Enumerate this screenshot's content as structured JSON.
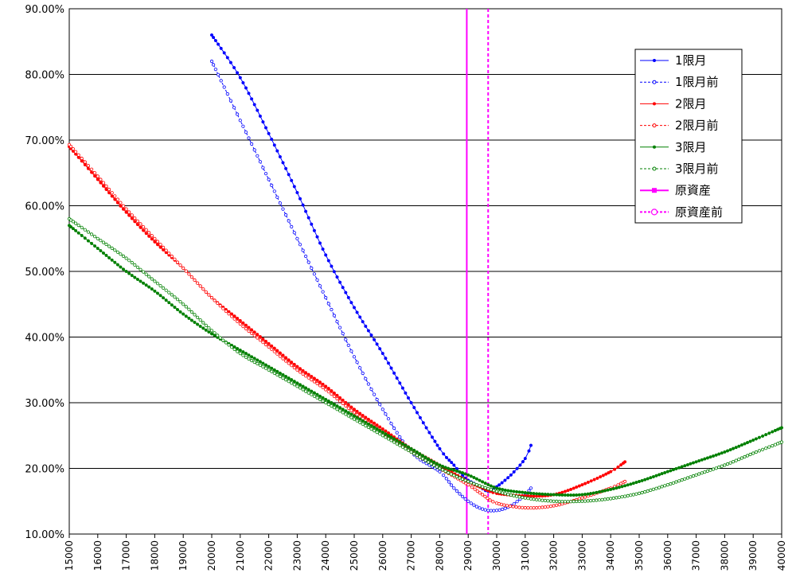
{
  "chart_data": {
    "type": "line",
    "title": "",
    "xlabel": "",
    "ylabel": "",
    "xlim": [
      15000,
      40000
    ],
    "ylim": [
      10,
      90
    ],
    "x_ticks": [
      "15000",
      "16000",
      "17000",
      "18000",
      "19000",
      "20000",
      "21000",
      "22000",
      "23000",
      "24000",
      "25000",
      "26000",
      "27000",
      "28000",
      "29000",
      "30000",
      "31000",
      "32000",
      "33000",
      "34000",
      "35000",
      "36000",
      "37000",
      "38000",
      "39000",
      "40000"
    ],
    "y_ticks": [
      "10.00%",
      "20.00%",
      "30.00%",
      "40.00%",
      "50.00%",
      "60.00%",
      "70.00%",
      "80.00%",
      "90.00%"
    ],
    "grid": "horizontal",
    "legend_position": "top-right",
    "legend": [
      "1限月",
      "1限月前",
      "2限月",
      "2限月前",
      "3限月",
      "3限月前",
      "原資産",
      "原資産前"
    ],
    "series": [
      {
        "name": "1限月",
        "color": "#0000ff",
        "style": "solid-filled",
        "points": [
          [
            20000,
            86.0
          ],
          [
            21000,
            79.5
          ],
          [
            22000,
            71.0
          ],
          [
            23000,
            62.0
          ],
          [
            24000,
            52.5
          ],
          [
            25000,
            44.5
          ],
          [
            26000,
            37.5
          ],
          [
            27000,
            30.0
          ],
          [
            28000,
            23.0
          ],
          [
            28500,
            20.5
          ],
          [
            28900,
            18.5
          ],
          [
            29300,
            17.5
          ],
          [
            29700,
            16.5
          ],
          [
            30000,
            17.2
          ],
          [
            30500,
            19.0
          ],
          [
            31000,
            21.5
          ],
          [
            31200,
            23.5
          ]
        ]
      },
      {
        "name": "1限月前",
        "color": "#0000ff",
        "style": "dashed-hollow",
        "points": [
          [
            20000,
            82.0
          ],
          [
            21000,
            73.0
          ],
          [
            22000,
            64.0
          ],
          [
            23000,
            55.0
          ],
          [
            24000,
            46.0
          ],
          [
            25000,
            37.0
          ],
          [
            26000,
            29.0
          ],
          [
            27000,
            22.5
          ],
          [
            28000,
            19.5
          ],
          [
            28500,
            17.0
          ],
          [
            29000,
            15.0
          ],
          [
            29500,
            13.8
          ],
          [
            30000,
            13.6
          ],
          [
            30500,
            14.3
          ],
          [
            31000,
            16.0
          ],
          [
            31200,
            17.0
          ]
        ]
      },
      {
        "name": "2限月",
        "color": "#ff0000",
        "style": "solid-filled",
        "points": [
          [
            15000,
            69.0
          ],
          [
            16000,
            64.0
          ],
          [
            17000,
            59.0
          ],
          [
            18000,
            54.5
          ],
          [
            19000,
            50.5
          ],
          [
            20000,
            46.0
          ],
          [
            21000,
            42.5
          ],
          [
            22000,
            39.0
          ],
          [
            23000,
            35.5
          ],
          [
            24000,
            32.5
          ],
          [
            25000,
            29.0
          ],
          [
            26000,
            26.0
          ],
          [
            27000,
            23.0
          ],
          [
            28000,
            20.5
          ],
          [
            29000,
            18.0
          ],
          [
            29500,
            17.0
          ],
          [
            30000,
            16.2
          ],
          [
            31000,
            15.8
          ],
          [
            32000,
            16.0
          ],
          [
            33000,
            17.5
          ],
          [
            34000,
            19.5
          ],
          [
            34500,
            21.0
          ]
        ]
      },
      {
        "name": "2限月前",
        "color": "#ff0000",
        "style": "dashed-hollow",
        "points": [
          [
            15000,
            69.3
          ],
          [
            16000,
            64.5
          ],
          [
            17000,
            59.5
          ],
          [
            18000,
            55.0
          ],
          [
            19000,
            50.5
          ],
          [
            20000,
            46.0
          ],
          [
            21000,
            42.0
          ],
          [
            22000,
            38.5
          ],
          [
            23000,
            35.0
          ],
          [
            24000,
            32.0
          ],
          [
            25000,
            28.5
          ],
          [
            26000,
            25.5
          ],
          [
            27000,
            22.5
          ],
          [
            28000,
            20.0
          ],
          [
            29000,
            17.5
          ],
          [
            29500,
            16.0
          ],
          [
            30000,
            14.7
          ],
          [
            31000,
            14.0
          ],
          [
            32000,
            14.3
          ],
          [
            33000,
            15.5
          ],
          [
            34000,
            17.0
          ],
          [
            34500,
            18.0
          ]
        ]
      },
      {
        "name": "3限月",
        "color": "#008000",
        "style": "solid-filled",
        "points": [
          [
            15000,
            57.0
          ],
          [
            16000,
            53.5
          ],
          [
            17000,
            50.0
          ],
          [
            18000,
            47.0
          ],
          [
            19000,
            43.5
          ],
          [
            20000,
            40.5
          ],
          [
            21000,
            38.0
          ],
          [
            22000,
            35.5
          ],
          [
            23000,
            33.0
          ],
          [
            24000,
            30.5
          ],
          [
            25000,
            28.0
          ],
          [
            26000,
            25.5
          ],
          [
            27000,
            23.0
          ],
          [
            28000,
            20.5
          ],
          [
            29000,
            19.0
          ],
          [
            30000,
            17.0
          ],
          [
            31000,
            16.3
          ],
          [
            32000,
            16.0
          ],
          [
            33000,
            16.0
          ],
          [
            34000,
            16.8
          ],
          [
            35000,
            18.0
          ],
          [
            36000,
            19.5
          ],
          [
            37000,
            21.0
          ],
          [
            38000,
            22.5
          ],
          [
            39000,
            24.3
          ],
          [
            40000,
            26.2
          ]
        ]
      },
      {
        "name": "3限月前",
        "color": "#008000",
        "style": "dashed-hollow",
        "points": [
          [
            15000,
            58.0
          ],
          [
            16000,
            55.0
          ],
          [
            17000,
            52.0
          ],
          [
            18000,
            48.5
          ],
          [
            19000,
            45.0
          ],
          [
            20000,
            41.0
          ],
          [
            21000,
            37.5
          ],
          [
            22000,
            35.0
          ],
          [
            23000,
            32.5
          ],
          [
            24000,
            30.0
          ],
          [
            25000,
            27.5
          ],
          [
            26000,
            25.0
          ],
          [
            27000,
            22.5
          ],
          [
            28000,
            20.0
          ],
          [
            29000,
            18.0
          ],
          [
            30000,
            16.5
          ],
          [
            31000,
            15.5
          ],
          [
            32000,
            15.0
          ],
          [
            33000,
            15.0
          ],
          [
            34000,
            15.4
          ],
          [
            35000,
            16.2
          ],
          [
            36000,
            17.5
          ],
          [
            37000,
            19.0
          ],
          [
            38000,
            20.5
          ],
          [
            39000,
            22.3
          ],
          [
            40000,
            24.0
          ]
        ]
      }
    ],
    "vertical_lines": [
      {
        "name": "原資産",
        "x": 28950,
        "color": "#ff00ff",
        "style": "solid"
      },
      {
        "name": "原資産前",
        "x": 29700,
        "color": "#ff00ff",
        "style": "dashed"
      }
    ]
  }
}
